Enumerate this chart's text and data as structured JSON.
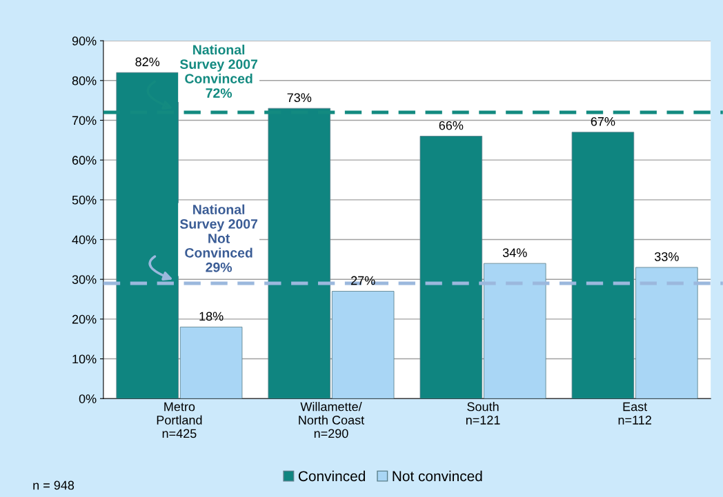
{
  "chart_data": {
    "type": "bar",
    "categories": [
      "Metro\nPortland\nn=425",
      "Willamette/\nNorth Coast\nn=290",
      "South\nn=121",
      "East\nn=112"
    ],
    "series": [
      {
        "name": "Convinced",
        "color": "#0f8580",
        "values": [
          82,
          73,
          66,
          67
        ]
      },
      {
        "name": "Not convinced",
        "color": "#a9d6f5",
        "values": [
          18,
          27,
          34,
          33
        ]
      }
    ],
    "ylim": [
      0,
      90
    ],
    "yticks": [
      {
        "value": 0,
        "label": "0%"
      },
      {
        "value": 10,
        "label": "10%"
      },
      {
        "value": 20,
        "label": "20%"
      },
      {
        "value": 30,
        "label": "30%"
      },
      {
        "value": 40,
        "label": "40%"
      },
      {
        "value": 50,
        "label": "50%"
      },
      {
        "value": 60,
        "label": "60%"
      },
      {
        "value": 70,
        "label": "70%"
      },
      {
        "value": 80,
        "label": "80%"
      },
      {
        "value": 90,
        "label": "90%"
      }
    ],
    "value_labels": [
      [
        "82%",
        "73%",
        "66%",
        "67%"
      ],
      [
        "18%",
        "27%",
        "34%",
        "33%"
      ]
    ],
    "ref_lines": [
      {
        "axis": "y",
        "value": 72,
        "label": "National\nSurvey 2007\nConvinced\n72%",
        "color": "#138a80",
        "line_style": "dashed"
      },
      {
        "axis": "y",
        "value": 29,
        "label": "National\nSurvey 2007\nNot\nConvinced\n29%",
        "color": "#9bb8dd",
        "line_style": "dashed"
      }
    ],
    "annotations": [
      "n = 948"
    ],
    "grid": "y",
    "legend": "bottom"
  }
}
